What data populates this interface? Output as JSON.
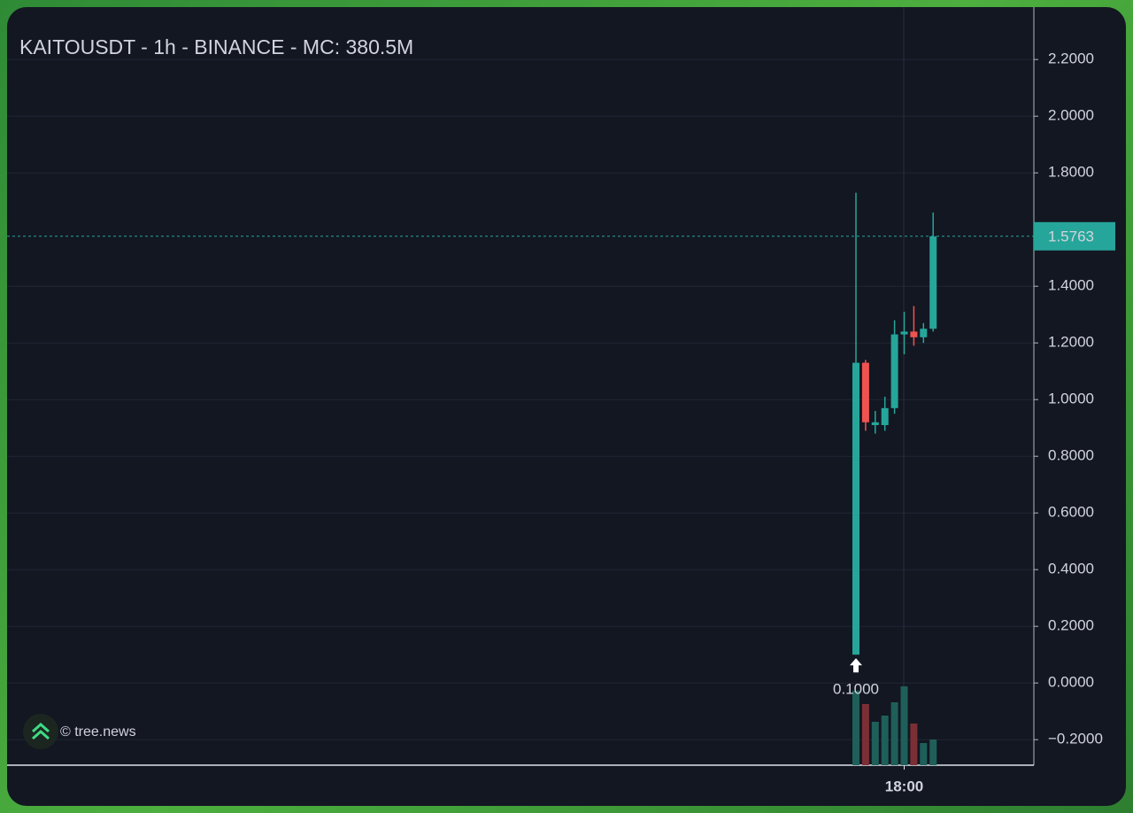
{
  "chart_data": {
    "type": "candlestick",
    "title": "KAITOUSDT - 1h - BINANCE - MC: 380.5M",
    "categories": [
      null,
      null,
      null,
      null,
      null,
      "18:00",
      null,
      null,
      null
    ],
    "open": [
      0.1,
      1.13,
      0.91,
      0.91,
      0.97,
      1.23,
      1.24,
      1.22,
      1.25
    ],
    "high": [
      1.73,
      1.14,
      0.96,
      1.01,
      1.28,
      1.31,
      1.33,
      1.27,
      1.66
    ],
    "low": [
      0.1,
      0.89,
      0.88,
      0.89,
      0.95,
      1.16,
      1.19,
      1.2,
      1.24
    ],
    "close": [
      1.13,
      0.92,
      0.92,
      0.97,
      1.23,
      1.24,
      1.22,
      1.25,
      1.5763
    ],
    "volume": [
      84,
      69,
      49,
      56,
      71,
      89,
      47,
      25,
      29
    ],
    "up_color": "#26a69a",
    "down_color": "#ef5350",
    "volume_up_color": "#1f5f59",
    "volume_down_color": "#7b2f35",
    "ylim": [
      -0.29,
      2.385
    ],
    "yticks": [
      {
        "value": -0.2,
        "label": "−0.2000"
      },
      {
        "value": 0,
        "label": "0.0000"
      },
      {
        "value": 0.2,
        "label": "0.2000"
      },
      {
        "value": 0.4,
        "label": "0.4000"
      },
      {
        "value": 0.6,
        "label": "0.6000"
      },
      {
        "value": 0.8,
        "label": "0.8000"
      },
      {
        "value": 1,
        "label": "1.0000"
      },
      {
        "value": 1.2,
        "label": "1.2000"
      },
      {
        "value": 1.4,
        "label": "1.4000"
      },
      {
        "value": 1.8,
        "label": "1.8000"
      },
      {
        "value": 2,
        "label": "2.0000"
      },
      {
        "value": 2.2,
        "label": "2.2000"
      }
    ],
    "grid": true,
    "last_price": 1.5763,
    "annotation": {
      "value": 0.1,
      "label": "0.1000"
    },
    "watermark": "© tree.news"
  }
}
